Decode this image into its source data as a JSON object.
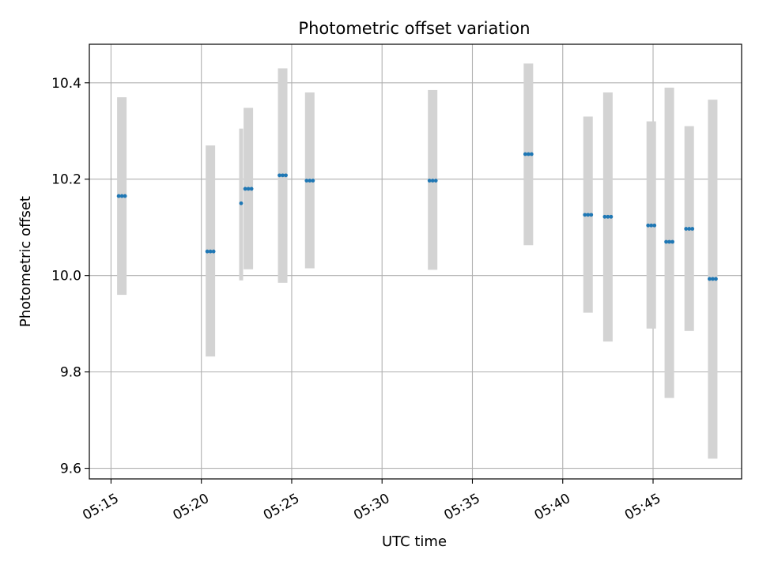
{
  "chart_data": {
    "type": "scatter",
    "title": "Photometric offset variation",
    "xlabel": "UTC time",
    "ylabel": "Photometric offset",
    "grid": true,
    "x_ticks": [
      "05:15",
      "05:20",
      "05:25",
      "05:30",
      "05:35",
      "05:40",
      "05:45"
    ],
    "x_tick_minutes": [
      315,
      320,
      325,
      330,
      335,
      340,
      345
    ],
    "y_ticks": [
      9.6,
      9.8,
      10.0,
      10.2,
      10.4
    ],
    "y_tick_labels": [
      "9.6",
      "9.8",
      "10.0",
      "10.2",
      "10.4"
    ],
    "xlim": [
      "05:13:48",
      "05:49:54"
    ],
    "ylim": [
      9.578,
      10.48
    ],
    "colors": {
      "error_bar": "#d3d3d3",
      "point": "#1f77b4",
      "grid": "#b0b0b0"
    },
    "groups": [
      {
        "time": "05:15:36",
        "y": 10.165,
        "lo": 9.96,
        "hi": 10.37,
        "n": 3
      },
      {
        "time": "05:20:30",
        "y": 10.05,
        "lo": 9.832,
        "hi": 10.27,
        "n": 3
      },
      {
        "time": "05:22:12",
        "y": 10.15,
        "lo": 9.99,
        "hi": 10.305,
        "n": 1
      },
      {
        "time": "05:22:36",
        "y": 10.18,
        "lo": 10.013,
        "hi": 10.348,
        "n": 3
      },
      {
        "time": "05:24:30",
        "y": 10.208,
        "lo": 9.985,
        "hi": 10.43,
        "n": 3
      },
      {
        "time": "05:26:00",
        "y": 10.197,
        "lo": 10.015,
        "hi": 10.38,
        "n": 3
      },
      {
        "time": "05:32:48",
        "y": 10.197,
        "lo": 10.012,
        "hi": 10.385,
        "n": 3
      },
      {
        "time": "05:38:06",
        "y": 10.252,
        "lo": 10.063,
        "hi": 10.44,
        "n": 3
      },
      {
        "time": "05:41:24",
        "y": 10.126,
        "lo": 9.923,
        "hi": 10.33,
        "n": 3
      },
      {
        "time": "05:42:30",
        "y": 10.122,
        "lo": 9.863,
        "hi": 10.38,
        "n": 3
      },
      {
        "time": "05:44:54",
        "y": 10.104,
        "lo": 9.89,
        "hi": 10.32,
        "n": 3
      },
      {
        "time": "05:45:54",
        "y": 10.07,
        "lo": 9.746,
        "hi": 10.39,
        "n": 3
      },
      {
        "time": "05:47:00",
        "y": 10.097,
        "lo": 9.885,
        "hi": 10.31,
        "n": 3
      },
      {
        "time": "05:48:18",
        "y": 9.993,
        "lo": 9.62,
        "hi": 10.365,
        "n": 3
      }
    ]
  }
}
